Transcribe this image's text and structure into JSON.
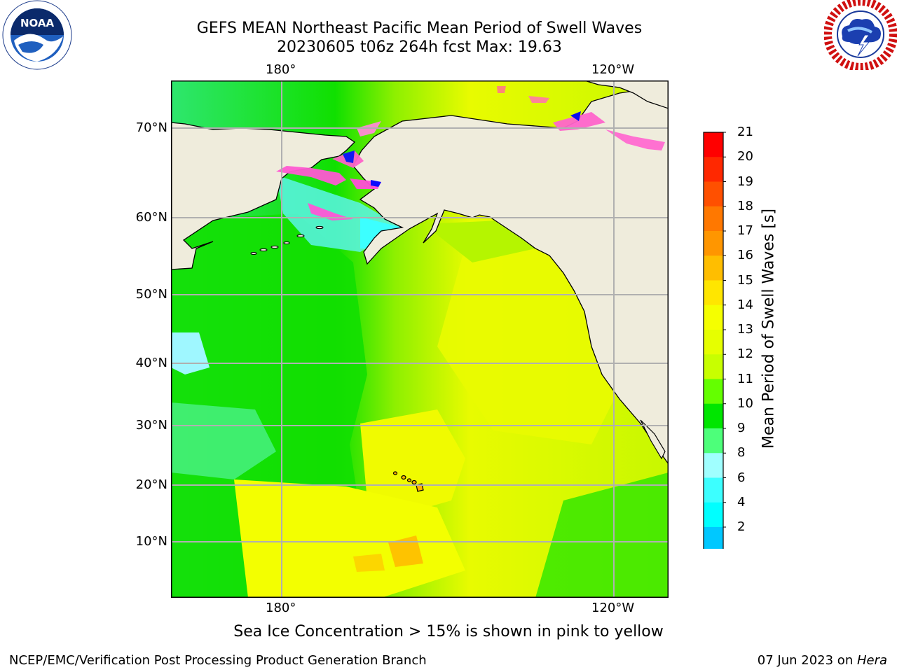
{
  "title_line1": "GEFS MEAN Northeast Pacific Mean Period of Swell Waves",
  "title_line2": "20230605 t06z 264h fcst   Max: 19.63",
  "logos": {
    "left": {
      "icon": "noaa-logo",
      "text": "NOAA",
      "ring_text": "NATIONAL OCEANIC AND ATMOSPHERIC ADMINISTRATION · U.S. DEPARTMENT OF COMMERCE"
    },
    "right": {
      "icon": "nws-logo",
      "ring_text": "NATIONAL WEATHER SERVICE"
    }
  },
  "map": {
    "lon_ticks_top": [
      "180°",
      "120°W"
    ],
    "lon_ticks_bottom": [
      "180°",
      "120°W"
    ],
    "lat_ticks": [
      "70°N",
      "60°N",
      "50°N",
      "40°N",
      "30°N",
      "20°N",
      "10°N"
    ],
    "land_color": "#efecdc",
    "grid": true
  },
  "colorbar": {
    "label": "Mean Period of Swell Waves [s]",
    "ticks": [
      "21",
      "20",
      "19",
      "18",
      "17",
      "16",
      "15",
      "14",
      "13",
      "12",
      "11",
      "10",
      "9",
      "8",
      "6",
      "4",
      "2"
    ],
    "colors_top_to_bottom": [
      "#ff0000",
      "#ff2800",
      "#ff5000",
      "#ff7800",
      "#ff9600",
      "#ffbe00",
      "#ffe600",
      "#f5ff00",
      "#e6ff00",
      "#c8ff00",
      "#64ff00",
      "#00e600",
      "#4dff7a",
      "#a0ffff",
      "#3cffff",
      "#00ffff",
      "#00c8ff",
      "#0078ff"
    ],
    "extend_color": "#0000ff"
  },
  "note": "Sea Ice Concentration > 15% is shown in pink to yellow",
  "footer_left": "NCEP/EMC/Verification Post Processing Product Generation Branch",
  "footer_right_date": "07 Jun 2023 on ",
  "footer_right_host": "Hera"
}
